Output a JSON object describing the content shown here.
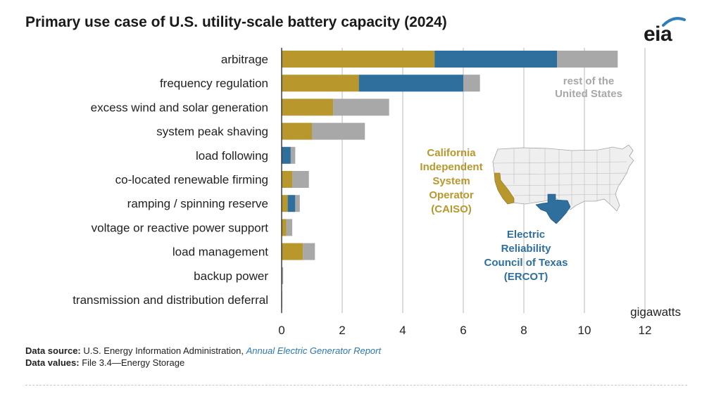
{
  "title": "Primary use case of U.S. utility-scale battery capacity (2024)",
  "logo": {
    "text": "eia"
  },
  "source": {
    "label1": "Data source:",
    "text1": "U.S. Energy Information Administration,",
    "link1": "Annual Electric Generator Report",
    "label2": "Data values:",
    "text2": "File 3.4—Energy Storage"
  },
  "colors": {
    "caiso": "#b8972d",
    "ercot": "#2e6f9e",
    "rest": "#a8a8a8",
    "grid": "#d4d4d4"
  },
  "annotations": {
    "rest": [
      "rest of the",
      "United States"
    ],
    "caiso": [
      "California",
      "Independent",
      "System",
      "Operator",
      "(CAISO)"
    ],
    "ercot": [
      "Electric",
      "Reliability",
      "Council of Texas",
      "(ERCOT)"
    ]
  },
  "chart_data": {
    "type": "bar",
    "orientation": "horizontal",
    "stacked": true,
    "title": "Primary use case of U.S. utility-scale battery capacity (2024)",
    "xlabel": "gigawatts",
    "xlim": [
      0,
      12
    ],
    "xticks": [
      0,
      2,
      4,
      6,
      8,
      10,
      12
    ],
    "grid": true,
    "categories": [
      "arbitrage",
      "frequency regulation",
      "excess wind and solar generation",
      "system peak shaving",
      "load following",
      "co-located renewable firming",
      "ramping / spinning reserve",
      "voltage or reactive power support",
      "load management",
      "backup power",
      "transmission and distribution deferral"
    ],
    "series": [
      {
        "name": "California Independent System Operator (CAISO)",
        "values": [
          5.05,
          2.55,
          1.7,
          1.0,
          0.0,
          0.35,
          0.2,
          0.15,
          0.7,
          0.0,
          0.0
        ]
      },
      {
        "name": "Electric Reliability Council of Texas (ERCOT)",
        "values": [
          4.05,
          3.45,
          0.0,
          0.0,
          0.3,
          0.0,
          0.25,
          0.0,
          0.0,
          0.0,
          0.0
        ]
      },
      {
        "name": "rest of the United States",
        "values": [
          2.0,
          0.55,
          1.85,
          1.75,
          0.15,
          0.55,
          0.15,
          0.2,
          0.4,
          0.05,
          0.02
        ]
      }
    ]
  }
}
